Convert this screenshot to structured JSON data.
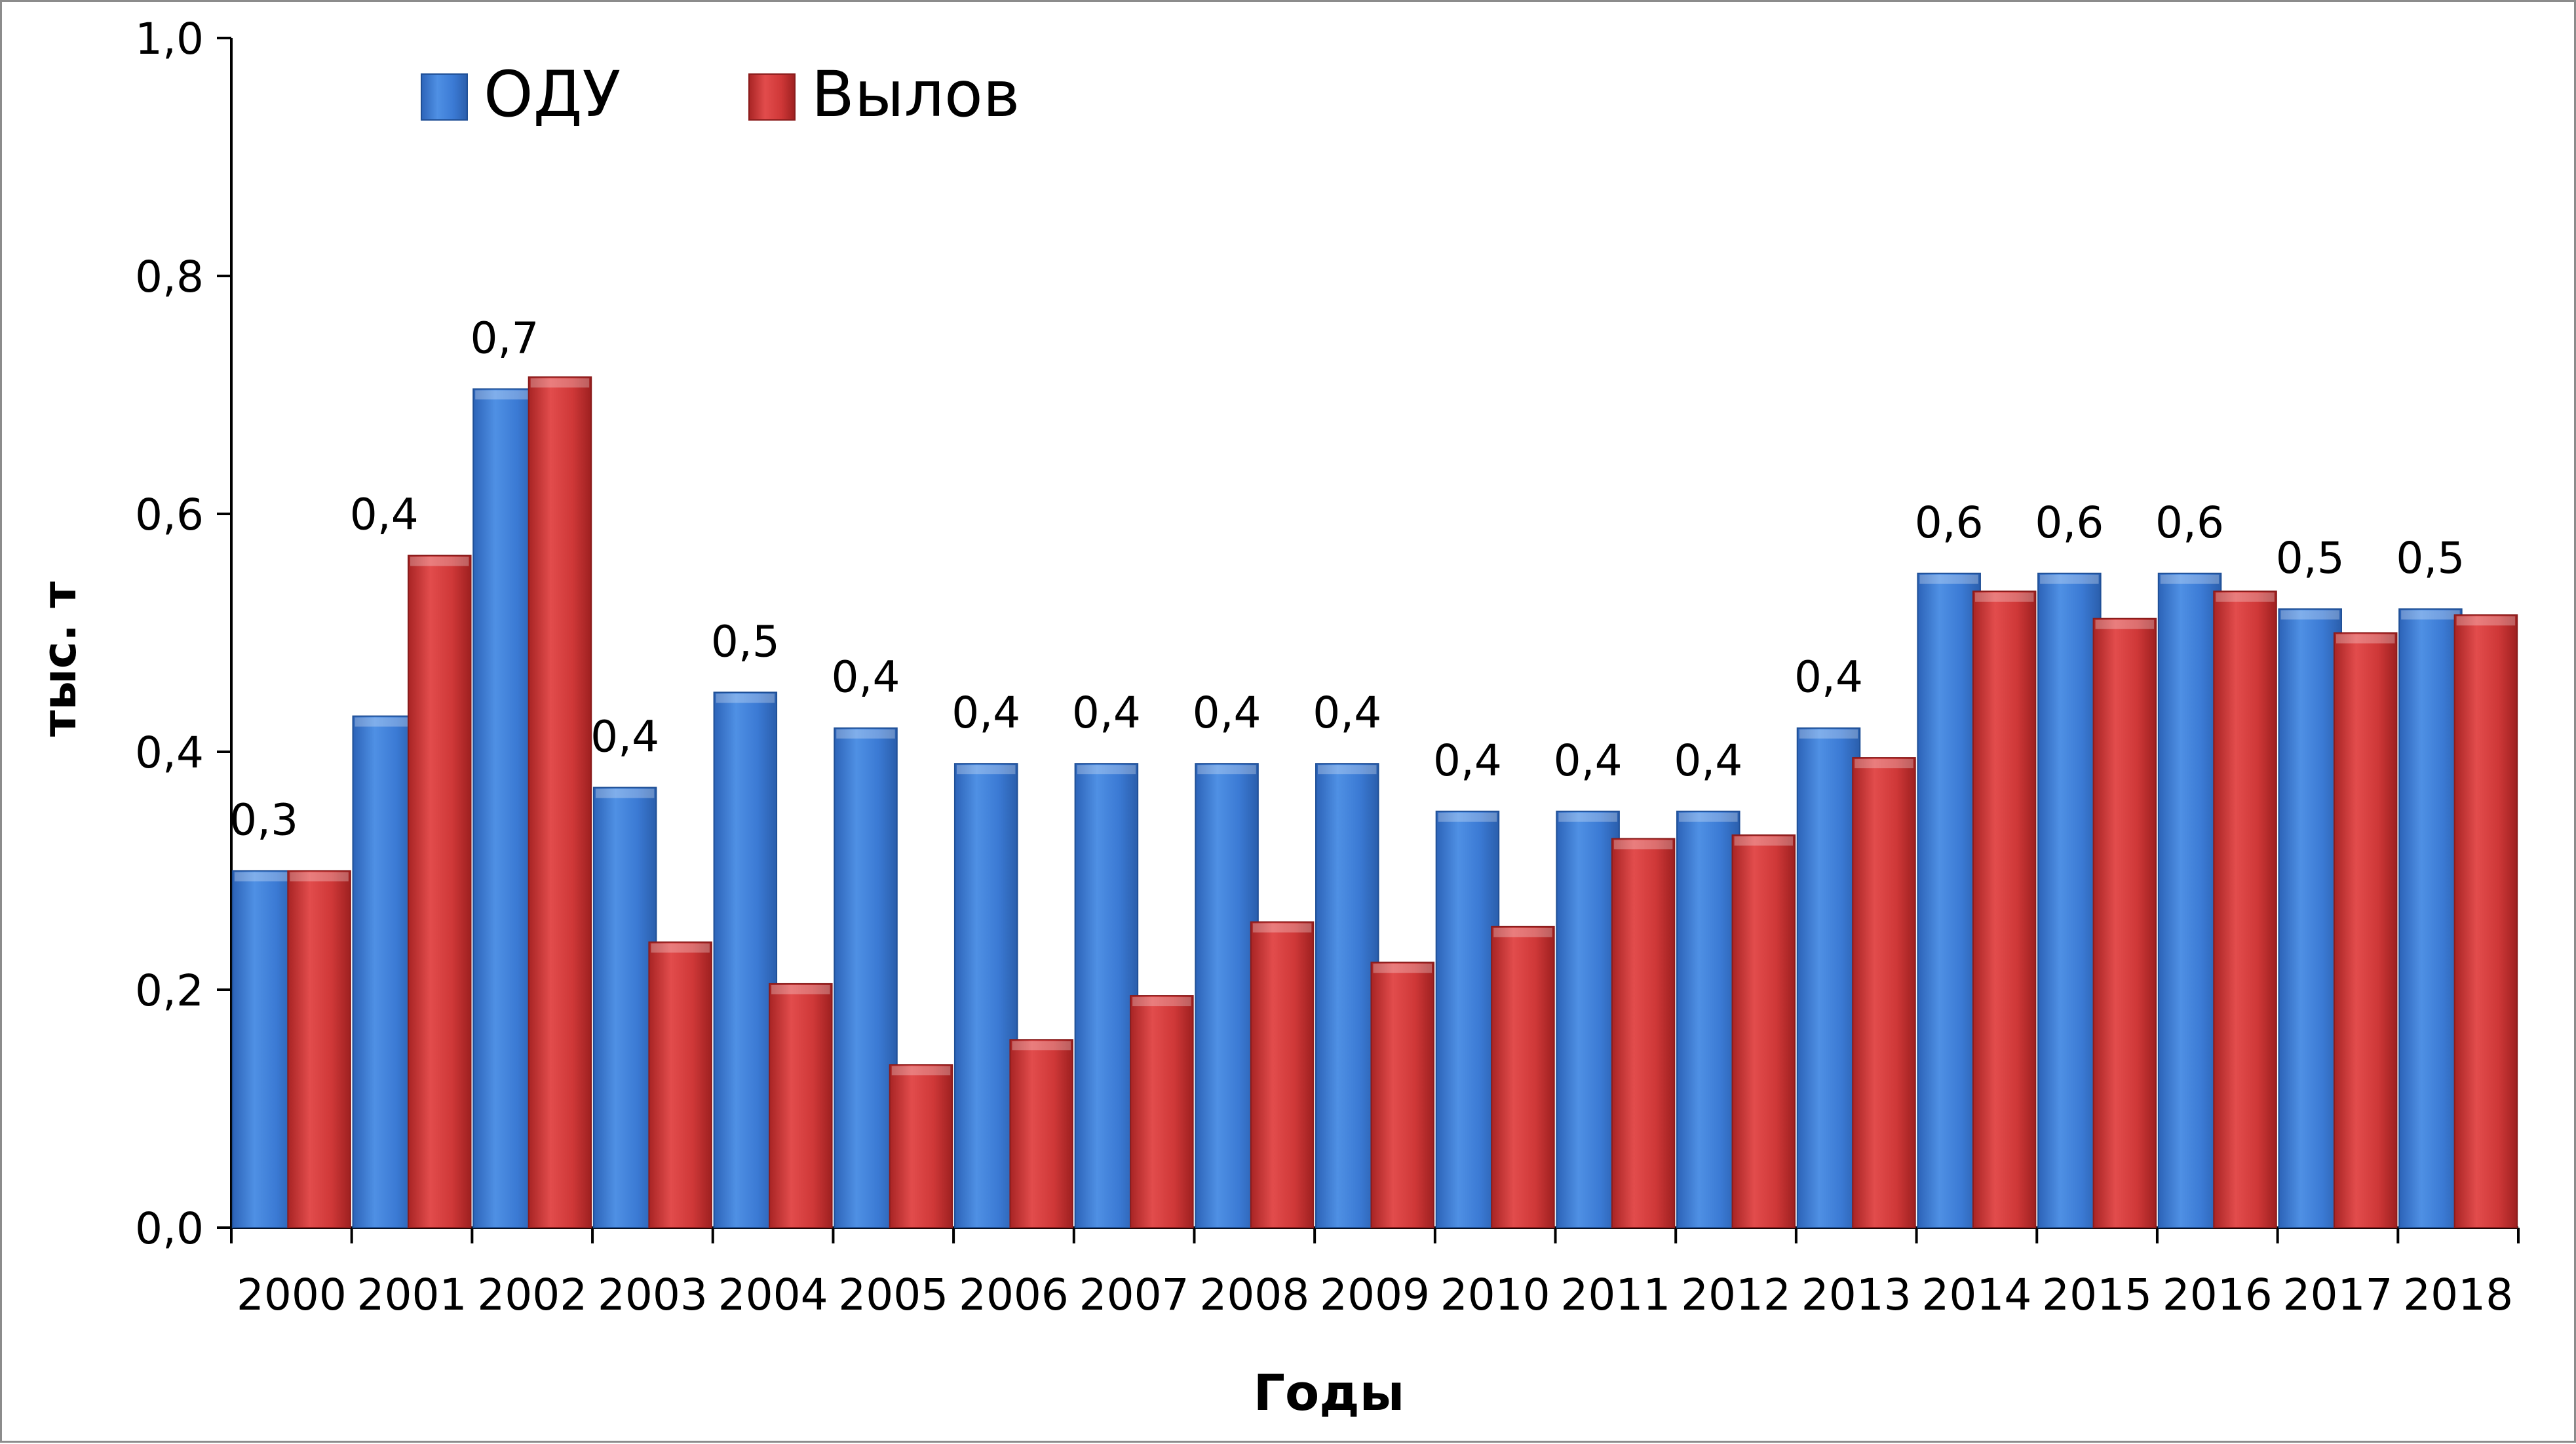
{
  "chart_data": {
    "type": "bar",
    "xlabel": "Годы",
    "ylabel": "тыс. т",
    "ylim": [
      0,
      1.0
    ],
    "yticks": [
      "0,0",
      "0,2",
      "0,4",
      "0,6",
      "0,8",
      "1,0"
    ],
    "categories": [
      "2000",
      "2001",
      "2002",
      "2003",
      "2004",
      "2005",
      "2006",
      "2007",
      "2008",
      "2009",
      "2010",
      "2011",
      "2012",
      "2013",
      "2014",
      "2015",
      "2016",
      "2017",
      "2018"
    ],
    "series": [
      {
        "name": "ОДУ",
        "color": "#3a78cf",
        "values": [
          0.3,
          0.43,
          0.705,
          0.37,
          0.45,
          0.42,
          0.39,
          0.39,
          0.39,
          0.39,
          0.35,
          0.35,
          0.35,
          0.42,
          0.55,
          0.55,
          0.55,
          0.52,
          0.52
        ],
        "data_labels": [
          "0,3",
          "0,4",
          "0,7",
          "0,4",
          "0,5",
          "0,4",
          "0,4",
          "0,4",
          "0,4",
          "0,4",
          "0,4",
          "0,4",
          "0,4",
          "0,4",
          "0,6",
          "0,6",
          "0,6",
          "0,5",
          "0,5"
        ]
      },
      {
        "name": "Вылов",
        "color": "#d23a3a",
        "values": [
          0.3,
          0.565,
          0.715,
          0.24,
          0.205,
          0.137,
          0.158,
          0.195,
          0.257,
          0.223,
          0.253,
          0.327,
          0.33,
          0.395,
          0.535,
          0.512,
          0.535,
          0.5,
          0.515
        ]
      }
    ],
    "legend_position": "top-left",
    "grid": false
  }
}
